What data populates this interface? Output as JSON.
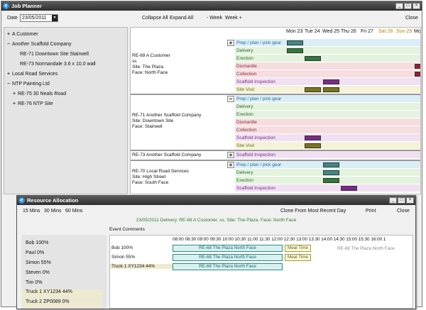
{
  "planner": {
    "title": "Job Planner",
    "date_label": "Date",
    "date_value": "23/05/2011",
    "collapse_all": "Collapse All",
    "expand_all": "Expand All",
    "prev_week": "- Week",
    "next_week": "Week +",
    "close": "Close",
    "tree": [
      {
        "label": "A Customer",
        "level": 0,
        "expander": "+"
      },
      {
        "label": "Another Scaffold Company",
        "level": 0,
        "expander": "−"
      },
      {
        "label": "RE-71 Downtown Site Stairwell",
        "level": 1,
        "expander": ""
      },
      {
        "label": "RE-73 Normandale 3.6 x 10.0 wall",
        "level": 1,
        "expander": ""
      },
      {
        "label": "Local Road Services",
        "level": 0,
        "expander": "+"
      },
      {
        "label": "NTP Painting Ltd",
        "level": 0,
        "expander": "−"
      },
      {
        "label": "RE-75 30 Neals Road",
        "level": 1,
        "expander": "+"
      },
      {
        "label": "RE-76 NTP Site",
        "level": 1,
        "expander": "+"
      }
    ],
    "days": [
      {
        "label": "Mon 23",
        "weekend": false
      },
      {
        "label": "Tue 24",
        "weekend": false
      },
      {
        "label": "Wed 25",
        "weekend": false
      },
      {
        "label": "Thu 26",
        "weekend": false
      },
      {
        "label": "Fri 27",
        "weekend": false
      },
      {
        "label": "Sat 28",
        "weekend": true
      },
      {
        "label": "Sun 29",
        "weekend": true
      },
      {
        "label": "Mo",
        "weekend": false
      }
    ],
    "jobs": [
      {
        "info": [
          "RE-69 A Customer",
          "ss",
          "Site: The Plaza",
          "Face: North Face"
        ],
        "expander": "+",
        "events": [
          "Prep / plan / pick gear",
          "Delivery",
          "Erection",
          "Dismantle",
          "Collection",
          "Scaffold Inspection",
          "Site Visit"
        ]
      },
      {
        "info": [
          "RE-71 Another Scaffold Company",
          "Site: Downtown Site",
          "Face: Stairwell"
        ],
        "expander": "−",
        "events": [
          "Prep / plan / pick gear",
          "Delivery",
          "Erection",
          "Dismantle",
          "Collection",
          "Scaffold Inspection",
          "Site Visit"
        ]
      },
      {
        "info": [
          "RE-73 Another Scaffold Company"
        ],
        "expander": "+",
        "events": [
          "Scaffold Inspection"
        ]
      },
      {
        "info": [
          "RE-70 Local Road Services",
          "Site: High Street",
          "Face: South Face"
        ],
        "expander": "+",
        "events": [
          "Prep / plan / pick gear",
          "Delivery",
          "Erection",
          "Scaffold Inspection"
        ]
      }
    ]
  },
  "resource": {
    "title": "Resource Allocation",
    "intervals": [
      "15 Mins",
      "30 Mins",
      "60 Mins"
    ],
    "clone": "Clone From Most Recent Day",
    "print": "Print",
    "close": "Close",
    "info_line": "23/05/2011  Delivery.  RE-68 A Customer. ss. Site: The Plaza. Face: North Face",
    "tab": "Event Comments",
    "people": [
      {
        "label": "Bob 100%",
        "selected": false
      },
      {
        "label": "Paul 0%",
        "selected": false
      },
      {
        "label": "Simon 55%",
        "selected": false
      },
      {
        "label": "Steven 0%",
        "selected": false
      },
      {
        "label": "Tim 0%",
        "selected": false
      },
      {
        "label": "Truck 1 XY1234 44%",
        "selected": true
      },
      {
        "label": "Truck 2 ZP0089 0%",
        "selected": true
      }
    ],
    "hours": [
      "08:00",
      "08:30",
      "09:00",
      "09:30",
      "10:00",
      "10:30",
      "11:00",
      "11:30",
      "12:00",
      "12:30",
      "13:00",
      "13:30",
      "14:00",
      "14:30",
      "15:00",
      "15:30",
      "16:00",
      "1"
    ],
    "rows": [
      {
        "label": "Bob 100%",
        "booking": "RE-68 The Plaza North Face",
        "meal": "Meal Time",
        "after": "RE-68 The Plaza North Face"
      },
      {
        "label": "Simon 55%",
        "booking": "RE-68 The Plaza North Face",
        "meal": "Meal Time",
        "after": ""
      },
      {
        "label": "Truck 1 XY1234 44%",
        "booking": "RE-68 The Plaza North Face",
        "meal": "",
        "after": ""
      }
    ]
  },
  "colors": {
    "titlebar": "#3a3a3a",
    "accent": "#2f8fd6",
    "prep_bar": "#3e8a8a",
    "erect_bar": "#2e7a3e",
    "dism_bar": "#9a2030",
    "insp_bar": "#7a2a8a",
    "visit_bar": "#7a7420"
  }
}
